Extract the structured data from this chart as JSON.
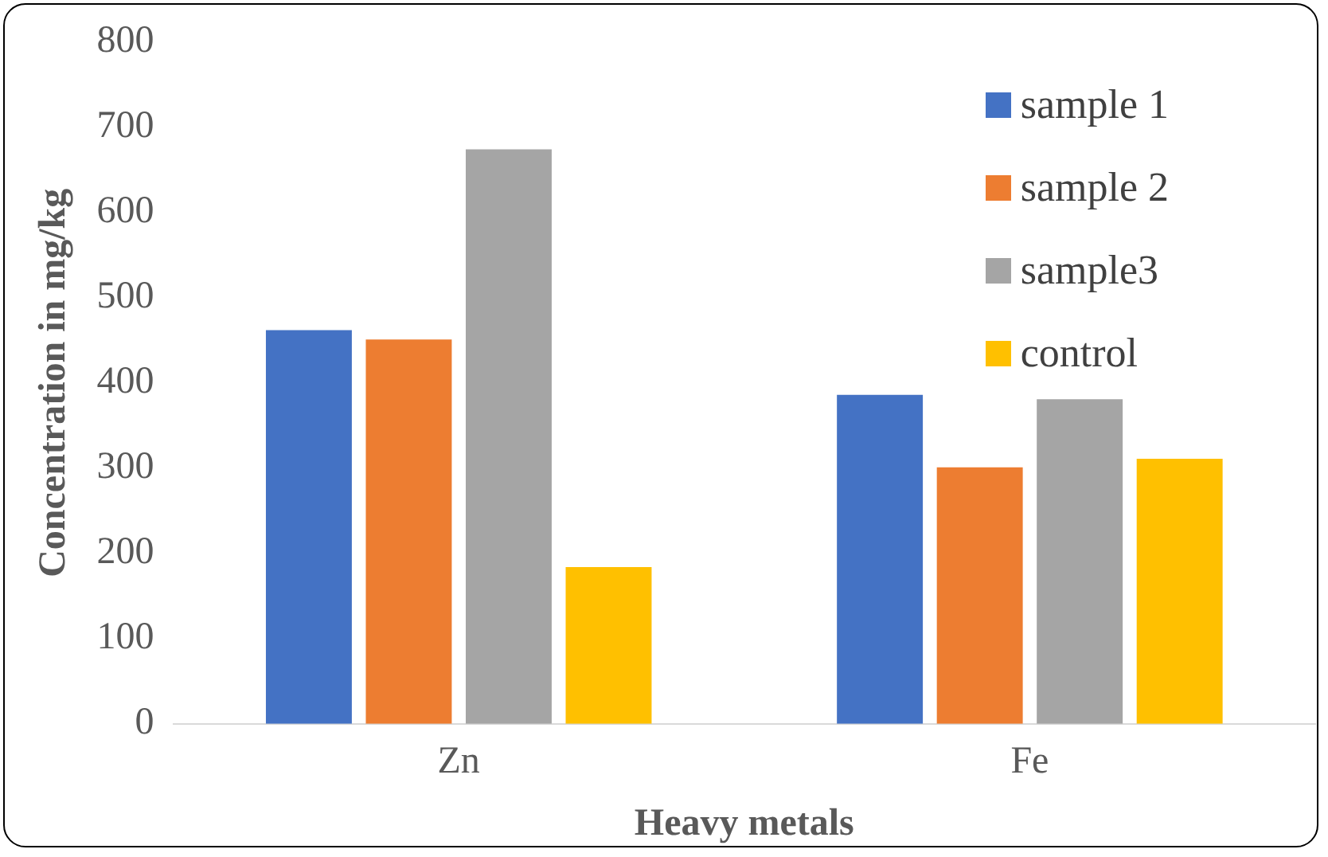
{
  "chart_data": {
    "type": "bar",
    "xlabel": "Heavy metals",
    "ylabel": "Concentration in mg/kg",
    "categories": [
      "Zn",
      "Fe"
    ],
    "series": [
      {
        "name": "sample 1",
        "color": "#4472c4",
        "values": [
          462,
          386
        ]
      },
      {
        "name": "sample 2",
        "color": "#ed7d31",
        "values": [
          451,
          301
        ]
      },
      {
        "name": "sample3",
        "color": "#a5a5a5",
        "values": [
          674,
          381
        ]
      },
      {
        "name": "control",
        "color": "#ffc000",
        "values": [
          184,
          311
        ]
      }
    ],
    "ylim": [
      0,
      800
    ],
    "yticks": [
      0,
      100,
      200,
      300,
      400,
      500,
      600,
      700,
      800
    ],
    "grid": false,
    "legend": "top right"
  }
}
